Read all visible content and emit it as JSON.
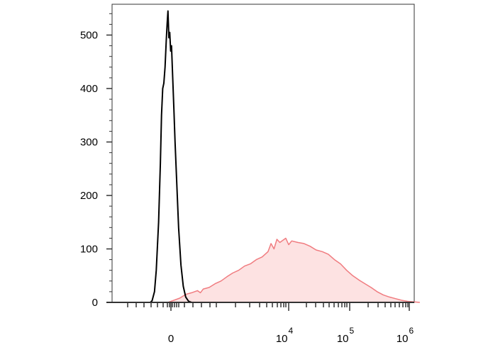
{
  "chart_data": {
    "type": "area",
    "x_scale": "biexponential",
    "y_ticks": [
      {
        "value": 0,
        "label": "0"
      },
      {
        "value": 100,
        "label": "100"
      },
      {
        "value": 200,
        "label": "200"
      },
      {
        "value": 300,
        "label": "300"
      },
      {
        "value": 400,
        "label": "400"
      },
      {
        "value": 500,
        "label": "500"
      }
    ],
    "ylim": [
      0,
      555
    ],
    "x_ticks": [
      {
        "value": "0",
        "base": "",
        "exp": "",
        "label": "0"
      },
      {
        "value": "1e4",
        "base": "10",
        "exp": "4",
        "label": "10^4"
      },
      {
        "value": "1e5",
        "base": "10",
        "exp": "5",
        "label": "10^5"
      },
      {
        "value": "1e6",
        "base": "10",
        "exp": "6",
        "label": "10^6"
      }
    ],
    "series": [
      {
        "role": "control",
        "color": "#000000",
        "fill": "none",
        "points": [
          [
            0.0,
            0
          ],
          [
            0.03,
            3
          ],
          [
            0.07,
            20
          ],
          [
            0.1,
            60
          ],
          [
            0.14,
            150
          ],
          [
            0.17,
            260
          ],
          [
            0.19,
            350
          ],
          [
            0.21,
            400
          ],
          [
            0.23,
            410
          ],
          [
            0.25,
            440
          ],
          [
            0.27,
            490
          ],
          [
            0.285,
            520
          ],
          [
            0.3,
            545
          ],
          [
            0.315,
            495
          ],
          [
            0.33,
            505
          ],
          [
            0.345,
            470
          ],
          [
            0.36,
            480
          ],
          [
            0.38,
            420
          ],
          [
            0.4,
            360
          ],
          [
            0.42,
            300
          ],
          [
            0.45,
            220
          ],
          [
            0.48,
            140
          ],
          [
            0.52,
            70
          ],
          [
            0.56,
            30
          ],
          [
            0.6,
            10
          ],
          [
            0.65,
            2
          ],
          [
            0.7,
            0
          ]
        ]
      },
      {
        "role": "stained",
        "color": "#f07c80",
        "fill": "#fde2e2",
        "points": [
          [
            0.0,
            0
          ],
          [
            0.1,
            4
          ],
          [
            0.2,
            8
          ],
          [
            0.3,
            15
          ],
          [
            0.4,
            18
          ],
          [
            0.5,
            22
          ],
          [
            0.55,
            18
          ],
          [
            0.6,
            25
          ],
          [
            0.7,
            28
          ],
          [
            0.8,
            35
          ],
          [
            0.9,
            40
          ],
          [
            1.0,
            48
          ],
          [
            1.1,
            55
          ],
          [
            1.2,
            60
          ],
          [
            1.3,
            68
          ],
          [
            1.4,
            72
          ],
          [
            1.5,
            80
          ],
          [
            1.6,
            85
          ],
          [
            1.7,
            95
          ],
          [
            1.75,
            110
          ],
          [
            1.8,
            100
          ],
          [
            1.85,
            118
          ],
          [
            1.9,
            112
          ],
          [
            2.0,
            120
          ],
          [
            2.05,
            108
          ],
          [
            2.1,
            115
          ],
          [
            2.2,
            112
          ],
          [
            2.3,
            110
          ],
          [
            2.4,
            105
          ],
          [
            2.5,
            98
          ],
          [
            2.6,
            95
          ],
          [
            2.7,
            90
          ],
          [
            2.8,
            80
          ],
          [
            2.9,
            72
          ],
          [
            3.0,
            60
          ],
          [
            3.1,
            50
          ],
          [
            3.2,
            42
          ],
          [
            3.3,
            35
          ],
          [
            3.4,
            28
          ],
          [
            3.5,
            20
          ],
          [
            3.6,
            14
          ],
          [
            3.7,
            10
          ],
          [
            3.8,
            7
          ],
          [
            3.9,
            4
          ],
          [
            4.0,
            2
          ],
          [
            4.1,
            1
          ],
          [
            4.2,
            0
          ]
        ]
      }
    ]
  }
}
